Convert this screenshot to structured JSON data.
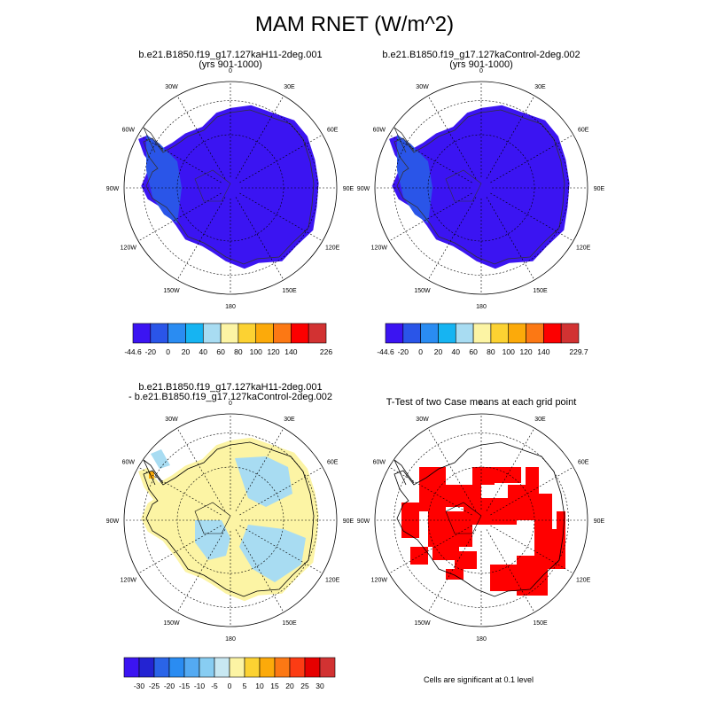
{
  "title": "MAM RNET (W/m^2)",
  "panels": [
    {
      "id": "p1",
      "title_lines": [
        "b.e21.B1850.f19_g17.127kaH11-2deg.001",
        "(yrs 901-1000)"
      ],
      "fill": "#3b14f2",
      "coast": "#333333"
    },
    {
      "id": "p2",
      "title_lines": [
        "b.e21.B1850.f19_g17.127kaControl-2deg.002",
        "(yrs 901-1000)"
      ],
      "fill": "#3b14f2",
      "coast": "#333333"
    },
    {
      "id": "p3",
      "title_lines": [
        "b.e21.B1850.f19_g17.127kaH11-2deg.001",
        "- b.e21.B1850.f19_g17.127kaControl-2deg.002"
      ],
      "fill": "#fcf4a4",
      "coast": "#000000"
    },
    {
      "id": "p4",
      "title_lines": [
        "T-Test of two Case means at each grid point"
      ],
      "fill": "#ff0000",
      "coast": "#000000"
    }
  ],
  "lon_labels": [
    "0",
    "30E",
    "60E",
    "90E",
    "120E",
    "150E",
    "180",
    "150W",
    "120W",
    "90W",
    "60W",
    "30W"
  ],
  "colorbars": [
    {
      "id": "cb1",
      "colors": [
        "#3b14f2",
        "#2a55e8",
        "#2a8cf2",
        "#16b4f2",
        "#a8dcf2",
        "#fcf4a4",
        "#fcd232",
        "#fcaa0a",
        "#fc7814",
        "#fc0000",
        "#d23232"
      ],
      "labels": [
        "-44.6",
        "-20",
        "0",
        "20",
        "40",
        "60",
        "80",
        "100",
        "120",
        "140",
        "226"
      ]
    },
    {
      "id": "cb2",
      "colors": [
        "#3b14f2",
        "#2a55e8",
        "#2a8cf2",
        "#16b4f2",
        "#a8dcf2",
        "#fcf4a4",
        "#fcd232",
        "#fcaa0a",
        "#fc7814",
        "#fc0000",
        "#d23232"
      ],
      "labels": [
        "-44.6",
        "-20",
        "0",
        "20",
        "40",
        "60",
        "80",
        "100",
        "120",
        "140",
        "229.7"
      ]
    },
    {
      "id": "cb3",
      "colors": [
        "#3b14f2",
        "#2323d2",
        "#2a64e8",
        "#2a8cf2",
        "#54aaf2",
        "#88cdf2",
        "#c8e8f2",
        "#fcf4a4",
        "#fcd232",
        "#fcaa0a",
        "#fc7814",
        "#fc3c14",
        "#e60000",
        "#d23232"
      ],
      "labels": [
        "-30",
        "-25",
        "-20",
        "-15",
        "-10",
        "-5",
        "0",
        "5",
        "10",
        "15",
        "20",
        "25",
        "30"
      ]
    }
  ],
  "significance_note": "Cells are significant at 0.1 level"
}
